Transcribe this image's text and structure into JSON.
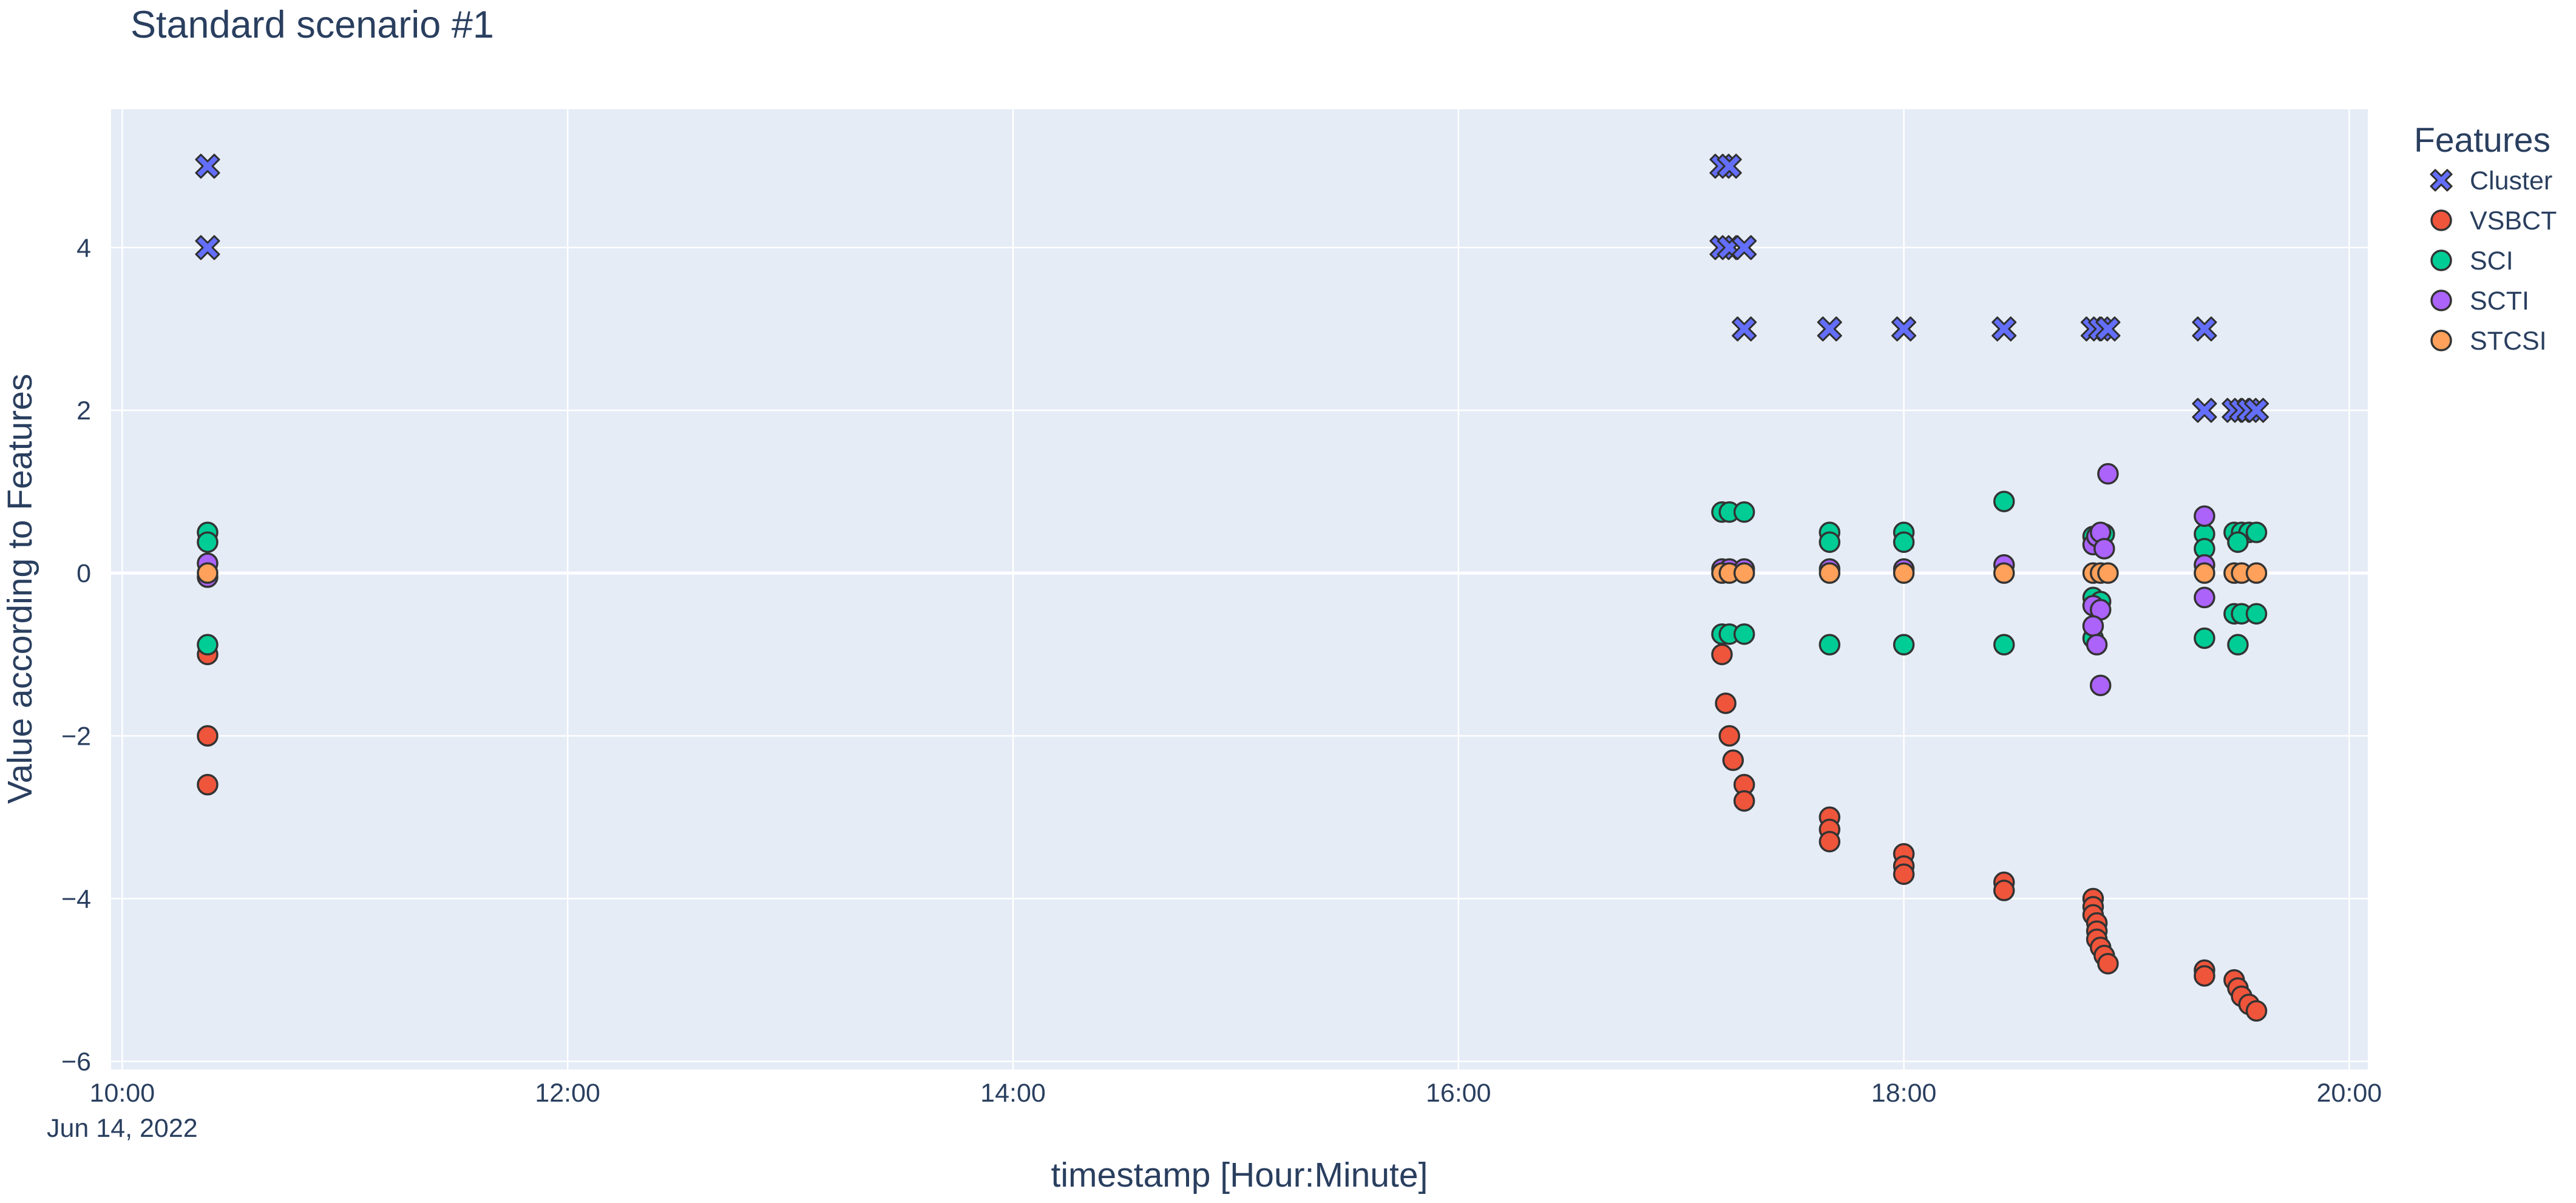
{
  "chart_data": {
    "type": "scatter",
    "title": "Standard scenario #1",
    "xlabel": "timestamp [Hour:Minute]",
    "ylabel": "Value according to Features",
    "x_type": "time",
    "xlim": [
      "2022-06-14 09:57",
      "2022-06-14 20:05"
    ],
    "ylim": [
      -6.1,
      5.7
    ],
    "x_ticks": [
      {
        "value": "2022-06-14 10:00",
        "label": "10:00",
        "sublabel": "Jun 14, 2022"
      },
      {
        "value": "2022-06-14 12:00",
        "label": "12:00",
        "sublabel": ""
      },
      {
        "value": "2022-06-14 14:00",
        "label": "14:00",
        "sublabel": ""
      },
      {
        "value": "2022-06-14 16:00",
        "label": "16:00",
        "sublabel": ""
      },
      {
        "value": "2022-06-14 18:00",
        "label": "18:00",
        "sublabel": ""
      },
      {
        "value": "2022-06-14 20:00",
        "label": "20:00",
        "sublabel": ""
      }
    ],
    "y_ticks": [
      {
        "value": -6,
        "label": "−6"
      },
      {
        "value": -4,
        "label": "−4"
      },
      {
        "value": -2,
        "label": "−2"
      },
      {
        "value": 0,
        "label": "0"
      },
      {
        "value": 2,
        "label": "2"
      },
      {
        "value": 4,
        "label": "4"
      }
    ],
    "grid": true,
    "background": "#e5ecf6",
    "legend": {
      "title": "Features",
      "position": "right"
    },
    "series": [
      {
        "name": "Cluster",
        "marker": "x",
        "color": "#636efa",
        "points": [
          [
            "2022-06-14 10:23",
            5
          ],
          [
            "2022-06-14 10:23",
            4
          ],
          [
            "2022-06-14 17:11",
            5
          ],
          [
            "2022-06-14 17:13",
            5
          ],
          [
            "2022-06-14 17:11",
            4
          ],
          [
            "2022-06-14 17:13",
            4
          ],
          [
            "2022-06-14 17:17",
            4
          ],
          [
            "2022-06-14 17:17",
            3
          ],
          [
            "2022-06-14 17:40",
            3
          ],
          [
            "2022-06-14 18:00",
            3
          ],
          [
            "2022-06-14 18:27",
            3
          ],
          [
            "2022-06-14 18:51",
            3
          ],
          [
            "2022-06-14 18:53",
            3
          ],
          [
            "2022-06-14 18:55",
            3
          ],
          [
            "2022-06-14 19:21",
            3
          ],
          [
            "2022-06-14 19:21",
            2
          ],
          [
            "2022-06-14 19:29",
            2
          ],
          [
            "2022-06-14 19:31",
            2
          ],
          [
            "2022-06-14 19:33",
            2
          ],
          [
            "2022-06-14 19:35",
            2
          ]
        ]
      },
      {
        "name": "VSBCT",
        "marker": "circle",
        "color": "#ef553b",
        "points": [
          [
            "2022-06-14 10:23",
            -1.0
          ],
          [
            "2022-06-14 10:23",
            -2.0
          ],
          [
            "2022-06-14 10:23",
            -2.6
          ],
          [
            "2022-06-14 17:11",
            -1.0
          ],
          [
            "2022-06-14 17:12",
            -1.6
          ],
          [
            "2022-06-14 17:13",
            -2.0
          ],
          [
            "2022-06-14 17:14",
            -2.3
          ],
          [
            "2022-06-14 17:17",
            -2.6
          ],
          [
            "2022-06-14 17:17",
            -2.8
          ],
          [
            "2022-06-14 17:40",
            -3.0
          ],
          [
            "2022-06-14 17:40",
            -3.15
          ],
          [
            "2022-06-14 17:40",
            -3.3
          ],
          [
            "2022-06-14 18:00",
            -3.45
          ],
          [
            "2022-06-14 18:00",
            -3.6
          ],
          [
            "2022-06-14 18:00",
            -3.7
          ],
          [
            "2022-06-14 18:27",
            -3.8
          ],
          [
            "2022-06-14 18:27",
            -3.9
          ],
          [
            "2022-06-14 18:51",
            -4.0
          ],
          [
            "2022-06-14 18:51",
            -4.1
          ],
          [
            "2022-06-14 18:51",
            -4.2
          ],
          [
            "2022-06-14 18:52",
            -4.3
          ],
          [
            "2022-06-14 18:52",
            -4.4
          ],
          [
            "2022-06-14 18:52",
            -4.5
          ],
          [
            "2022-06-14 18:53",
            -4.6
          ],
          [
            "2022-06-14 18:54",
            -4.7
          ],
          [
            "2022-06-14 18:55",
            -4.8
          ],
          [
            "2022-06-14 19:21",
            -4.88
          ],
          [
            "2022-06-14 19:21",
            -4.95
          ],
          [
            "2022-06-14 19:29",
            -5.0
          ],
          [
            "2022-06-14 19:30",
            -5.1
          ],
          [
            "2022-06-14 19:31",
            -5.2
          ],
          [
            "2022-06-14 19:33",
            -5.3
          ],
          [
            "2022-06-14 19:35",
            -5.38
          ]
        ]
      },
      {
        "name": "SCI",
        "marker": "circle",
        "color": "#00cc96",
        "points": [
          [
            "2022-06-14 10:23",
            0.5
          ],
          [
            "2022-06-14 10:23",
            0.38
          ],
          [
            "2022-06-14 10:23",
            -0.88
          ],
          [
            "2022-06-14 17:11",
            0.75
          ],
          [
            "2022-06-14 17:13",
            0.75
          ],
          [
            "2022-06-14 17:17",
            0.75
          ],
          [
            "2022-06-14 17:11",
            -0.75
          ],
          [
            "2022-06-14 17:13",
            -0.75
          ],
          [
            "2022-06-14 17:17",
            -0.75
          ],
          [
            "2022-06-14 17:40",
            0.5
          ],
          [
            "2022-06-14 17:40",
            0.38
          ],
          [
            "2022-06-14 17:40",
            -0.88
          ],
          [
            "2022-06-14 18:00",
            0.5
          ],
          [
            "2022-06-14 18:00",
            0.38
          ],
          [
            "2022-06-14 18:00",
            -0.88
          ],
          [
            "2022-06-14 18:27",
            0.88
          ],
          [
            "2022-06-14 18:27",
            -0.88
          ],
          [
            "2022-06-14 18:51",
            0.45
          ],
          [
            "2022-06-14 18:52",
            0.4
          ],
          [
            "2022-06-14 18:54",
            0.48
          ],
          [
            "2022-06-14 18:51",
            -0.3
          ],
          [
            "2022-06-14 18:53",
            -0.35
          ],
          [
            "2022-06-14 18:51",
            -0.8
          ],
          [
            "2022-06-14 19:21",
            0.48
          ],
          [
            "2022-06-14 19:21",
            0.3
          ],
          [
            "2022-06-14 19:21",
            -0.8
          ],
          [
            "2022-06-14 19:29",
            0.5
          ],
          [
            "2022-06-14 19:31",
            0.5
          ],
          [
            "2022-06-14 19:33",
            0.5
          ],
          [
            "2022-06-14 19:35",
            0.5
          ],
          [
            "2022-06-14 19:30",
            0.38
          ],
          [
            "2022-06-14 19:29",
            -0.5
          ],
          [
            "2022-06-14 19:31",
            -0.5
          ],
          [
            "2022-06-14 19:35",
            -0.5
          ],
          [
            "2022-06-14 19:30",
            -0.88
          ]
        ]
      },
      {
        "name": "SCTI",
        "marker": "circle",
        "color": "#ab63fa",
        "points": [
          [
            "2022-06-14 10:23",
            0.12
          ],
          [
            "2022-06-14 10:23",
            -0.05
          ],
          [
            "2022-06-14 17:11",
            0.05
          ],
          [
            "2022-06-14 17:13",
            0.05
          ],
          [
            "2022-06-14 17:17",
            0.05
          ],
          [
            "2022-06-14 17:40",
            0.05
          ],
          [
            "2022-06-14 18:00",
            0.05
          ],
          [
            "2022-06-14 18:27",
            0.1
          ],
          [
            "2022-06-14 18:51",
            0.35
          ],
          [
            "2022-06-14 18:52",
            0.45
          ],
          [
            "2022-06-14 18:53",
            0.5
          ],
          [
            "2022-06-14 18:54",
            0.3
          ],
          [
            "2022-06-14 18:55",
            1.22
          ],
          [
            "2022-06-14 18:51",
            -0.4
          ],
          [
            "2022-06-14 18:53",
            -0.45
          ],
          [
            "2022-06-14 18:51",
            -0.65
          ],
          [
            "2022-06-14 18:52",
            -0.88
          ],
          [
            "2022-06-14 18:53",
            -1.38
          ],
          [
            "2022-06-14 19:21",
            0.7
          ],
          [
            "2022-06-14 19:21",
            0.1
          ],
          [
            "2022-06-14 19:21",
            -0.3
          ]
        ]
      },
      {
        "name": "STCSI",
        "marker": "circle",
        "color": "#ffa15a",
        "points": [
          [
            "2022-06-14 10:23",
            0.0
          ],
          [
            "2022-06-14 17:11",
            0.0
          ],
          [
            "2022-06-14 17:13",
            0.0
          ],
          [
            "2022-06-14 17:17",
            0.0
          ],
          [
            "2022-06-14 17:40",
            0.0
          ],
          [
            "2022-06-14 18:00",
            0.0
          ],
          [
            "2022-06-14 18:27",
            0.0
          ],
          [
            "2022-06-14 18:51",
            0.0
          ],
          [
            "2022-06-14 18:53",
            0.0
          ],
          [
            "2022-06-14 18:55",
            0.0
          ],
          [
            "2022-06-14 19:21",
            0.0
          ],
          [
            "2022-06-14 19:29",
            0.0
          ],
          [
            "2022-06-14 19:31",
            0.0
          ],
          [
            "2022-06-14 19:35",
            0.0
          ]
        ]
      }
    ]
  }
}
